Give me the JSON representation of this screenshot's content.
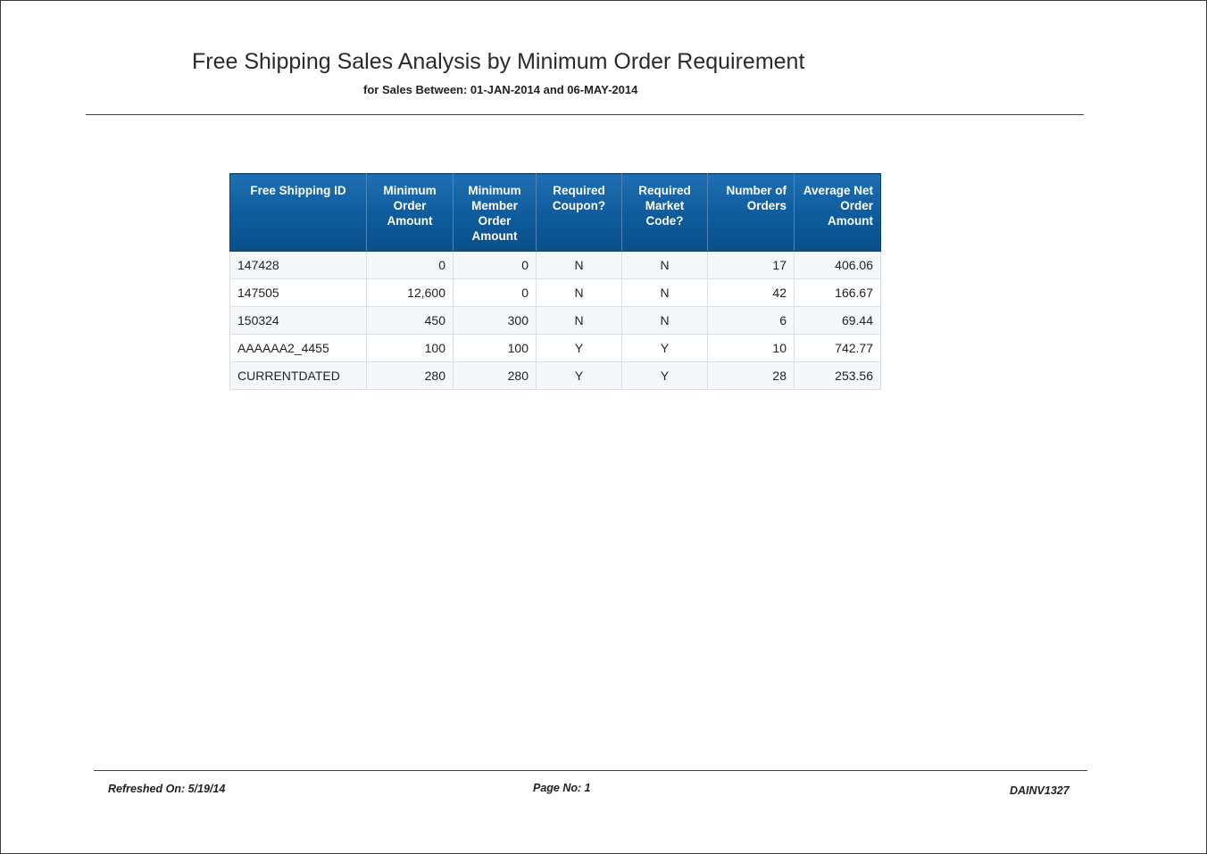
{
  "report": {
    "title": "Free Shipping Sales Analysis by Minimum Order Requirement",
    "subtitle": "for Sales Between: 01-JAN-2014 and 06-MAY-2014"
  },
  "table": {
    "headers": [
      "Free Shipping ID",
      "Minimum Order Amount",
      "Minimum Member Order Amount",
      "Required Coupon?",
      "Required Market Code?",
      "Number of Orders",
      "Average Net Order Amount"
    ],
    "rows": [
      [
        "147428",
        "0",
        "0",
        "N",
        "N",
        "17",
        "406.06"
      ],
      [
        "147505",
        "12,600",
        "0",
        "N",
        "N",
        "42",
        "166.67"
      ],
      [
        "150324",
        "450",
        "300",
        "N",
        "N",
        "6",
        "69.44"
      ],
      [
        "AAAAAA2_4455",
        "100",
        "100",
        "Y",
        "Y",
        "10",
        "742.77"
      ],
      [
        "CURRENTDATED",
        "280",
        "280",
        "Y",
        "Y",
        "28",
        "253.56"
      ]
    ]
  },
  "footer": {
    "refreshed": "Refreshed On: 5/19/14",
    "page": "Page No: 1",
    "report_code": "DAINV1327"
  },
  "colors": {
    "header_bg": "#0e5b9c",
    "header_text": "#ffffff",
    "row_alt_bg": "#f5f8fa"
  }
}
